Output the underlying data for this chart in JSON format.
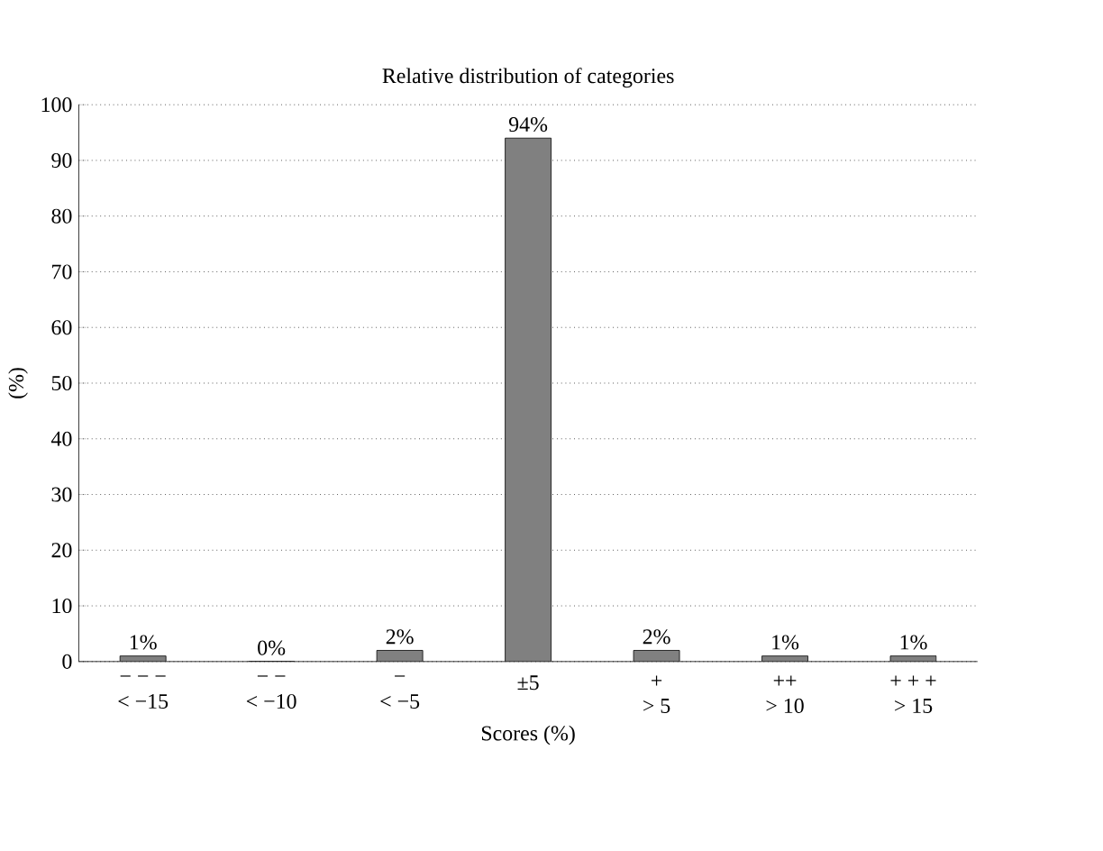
{
  "chart_data": {
    "type": "bar",
    "title": "Relative distribution of categories",
    "xlabel": "Scores (%)",
    "ylabel": "(%)",
    "categories": [
      "− − −\n< −15",
      "− −\n< −10",
      "−\n< −5",
      "±5",
      "+\n> 5",
      "++\n> 10",
      "+ + +\n> 15"
    ],
    "values": [
      1,
      0,
      2,
      94,
      2,
      1,
      1
    ],
    "value_labels": [
      "1%",
      "0%",
      "2%",
      "94%",
      "2%",
      "1%",
      "1%"
    ],
    "color": "#808080",
    "ylim": [
      0,
      100
    ],
    "yticks": [
      0,
      10,
      20,
      30,
      40,
      50,
      60,
      70,
      80,
      90,
      100
    ],
    "grid": "y"
  }
}
